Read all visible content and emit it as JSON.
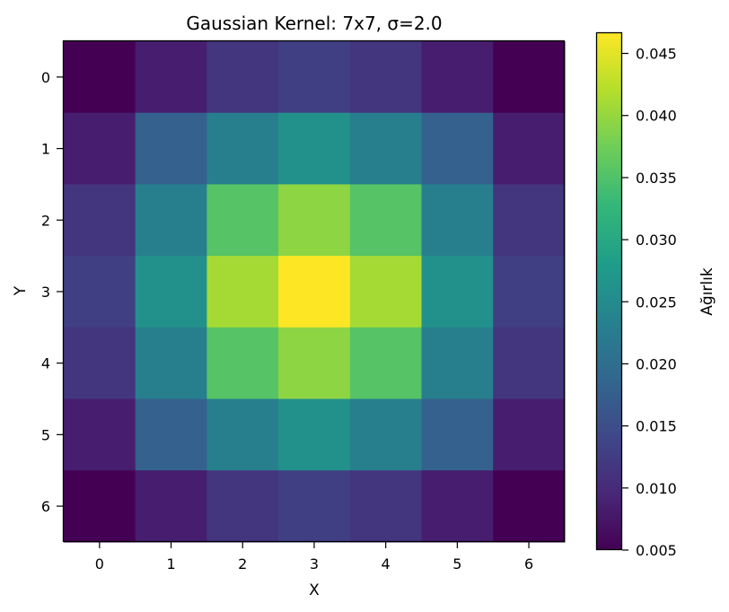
{
  "chart_data": {
    "type": "heatmap",
    "title": "Gaussian Kernel: 7x7, σ=2.0",
    "xlabel": "X",
    "ylabel": "Y",
    "x_ticks": [
      "0",
      "1",
      "2",
      "3",
      "4",
      "5",
      "6"
    ],
    "y_ticks": [
      "0",
      "1",
      "2",
      "3",
      "4",
      "5",
      "6"
    ],
    "values": [
      [
        0.005,
        0.0085,
        0.0115,
        0.0128,
        0.0115,
        0.0085,
        0.005
      ],
      [
        0.0085,
        0.0178,
        0.023,
        0.026,
        0.023,
        0.0178,
        0.0085
      ],
      [
        0.0115,
        0.023,
        0.0355,
        0.0395,
        0.0355,
        0.023,
        0.0115
      ],
      [
        0.0128,
        0.026,
        0.041,
        0.047,
        0.041,
        0.026,
        0.0128
      ],
      [
        0.0115,
        0.023,
        0.0355,
        0.0395,
        0.0355,
        0.023,
        0.0115
      ],
      [
        0.0085,
        0.0178,
        0.023,
        0.026,
        0.023,
        0.0178,
        0.0085
      ],
      [
        0.005,
        0.0085,
        0.0115,
        0.0128,
        0.0115,
        0.0085,
        0.005
      ]
    ],
    "colorbar": {
      "label": "Ağırlık",
      "min": 0.005,
      "max": 0.0467,
      "ticks": [
        "0.005",
        "0.010",
        "0.015",
        "0.020",
        "0.025",
        "0.030",
        "0.035",
        "0.040",
        "0.045"
      ],
      "tick_values": [
        0.005,
        0.01,
        0.015,
        0.02,
        0.025,
        0.03,
        0.035,
        0.04,
        0.045
      ]
    },
    "colormap": "viridis",
    "colormap_stops": [
      "#440154",
      "#482878",
      "#3e4989",
      "#31688e",
      "#26828e",
      "#1f9e89",
      "#35b779",
      "#6ece58",
      "#b5de2b",
      "#fde725"
    ],
    "grid": false
  }
}
